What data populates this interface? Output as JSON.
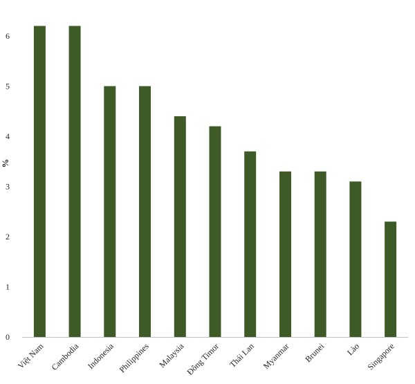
{
  "chart_data": {
    "type": "bar",
    "categories": [
      "Việt Nam",
      "Cambodia",
      "Indonesia",
      "Philippines",
      "Malaysia",
      "Đông Timor",
      "Thái Lan",
      "Myanmar",
      "Brunei",
      "Lào",
      "Singapore"
    ],
    "series": [
      {
        "values": [
          6.2,
          6.2,
          5.0,
          5.0,
          4.4,
          4.2,
          3.7,
          3.3,
          3.3,
          3.1,
          2.3
        ]
      }
    ],
    "title": "",
    "xlabel": "",
    "ylabel": "%",
    "ylim": [
      0,
      6.5
    ],
    "yticks": [
      "0",
      "1",
      "2",
      "3",
      "4",
      "5",
      "6"
    ],
    "grid": false,
    "bar_color": "#3d5a27"
  }
}
